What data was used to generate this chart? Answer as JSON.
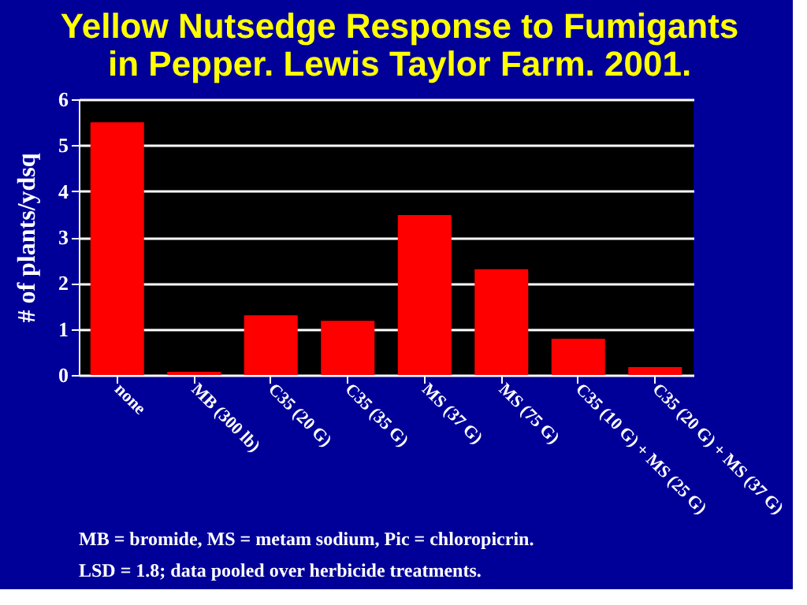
{
  "chart_data": {
    "type": "bar",
    "title": "Yellow Nutsedge Response to Fumigants\nin Pepper.  Lewis Taylor Farm. 2001.",
    "ylabel": "# of plants/ydsq",
    "categories": [
      "none",
      "MB (300 lb)",
      "C35 (20 G)",
      "C35 (35 G)",
      "MS (37 G)",
      "MS (75 G)",
      "C35 (10 G) + MS (25 G)",
      "C35 (20 G) + MS (37 G)"
    ],
    "values": [
      5.5,
      0.07,
      1.3,
      1.18,
      3.48,
      2.3,
      0.79,
      0.17
    ],
    "color": "#ff0000",
    "ylim": [
      0,
      6
    ],
    "yticks": [
      0,
      1,
      2,
      3,
      4,
      5,
      6
    ],
    "grid": "y",
    "annotations": [
      "MB = bromide, MS = metam sodium, Pic = chloropicrin.",
      "LSD = 1.8; data pooled over herbicide treatments."
    ]
  }
}
